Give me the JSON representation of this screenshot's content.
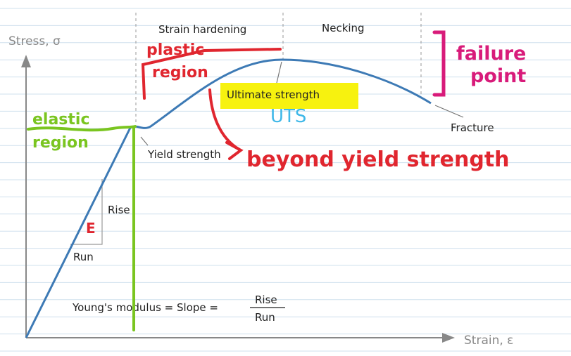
{
  "axes": {
    "y_label": "Stress, σ",
    "x_label": "Strain, ε"
  },
  "regions": {
    "strain_hardening": "Strain hardening",
    "necking": "Necking"
  },
  "points": {
    "ultimate": "Ultimate strength",
    "fracture": "Fracture",
    "yield": "Yield strength"
  },
  "slope": {
    "rise": "Rise",
    "run": "Run",
    "formula": "Young's modulus = Slope =",
    "numerator": "Rise",
    "denominator": "Run"
  },
  "annotations": {
    "plastic": [
      "plastic",
      "region"
    ],
    "elastic": [
      "elastic",
      "region"
    ],
    "failure": [
      "failure",
      "point"
    ],
    "uts": "UTS",
    "beyond": "beyond yield strength",
    "modulus": "E"
  }
}
